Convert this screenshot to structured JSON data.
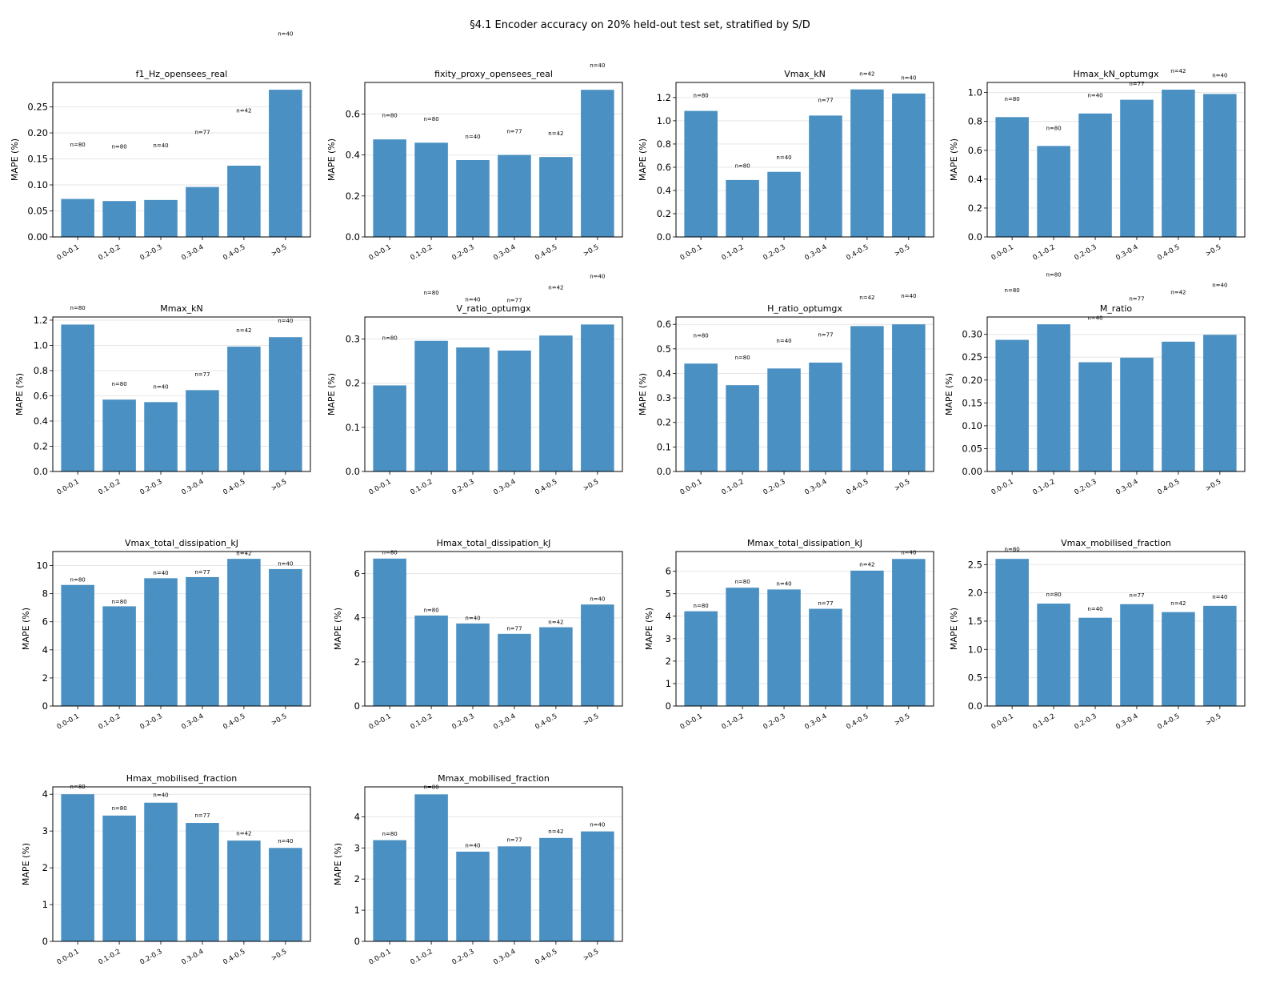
{
  "title": "§4.1 Encoder accuracy on 20% held-out test set, stratified by S/D",
  "colors": {
    "bar": "#4a90c2",
    "grid": "#e6e6e6",
    "axis": "#000000"
  },
  "chart_data": [
    {
      "type": "bar",
      "title": "f1_Hz_opensees_real",
      "ylabel": "MAPE (%)",
      "categories": [
        "0.0-0.1",
        "0.1-0.2",
        "0.2-0.3",
        "0.3-0.4",
        "0.4-0.5",
        ">0.5"
      ],
      "values": [
        0.073,
        0.069,
        0.071,
        0.096,
        0.137,
        0.283
      ],
      "n_labels": [
        "n=80",
        "n=80",
        "n=40",
        "n=77",
        "n=42",
        "n=40"
      ],
      "ylim": [
        0,
        0.297
      ],
      "yticks": [
        0,
        0.05,
        0.1,
        0.15,
        0.2,
        0.25
      ],
      "ytick_decimals": 2,
      "grid": true
    },
    {
      "type": "bar",
      "title": "fixity_proxy_opensees_real",
      "ylabel": "MAPE (%)",
      "categories": [
        "0.0-0.1",
        "0.1-0.2",
        "0.2-0.3",
        "0.3-0.4",
        "0.4-0.5",
        ">0.5"
      ],
      "values": [
        0.476,
        0.46,
        0.375,
        0.4,
        0.39,
        0.718
      ],
      "n_labels": [
        "n=80",
        "n=80",
        "n=40",
        "n=77",
        "n=42",
        "n=40"
      ],
      "ylim": [
        0,
        0.754
      ],
      "yticks": [
        0,
        0.2,
        0.4,
        0.6
      ],
      "ytick_decimals": 1,
      "grid": true
    },
    {
      "type": "bar",
      "title": "Vmax_kN",
      "ylabel": "MAPE (%)",
      "categories": [
        "0.0-0.1",
        "0.1-0.2",
        "0.2-0.3",
        "0.3-0.4",
        "0.4-0.5",
        ">0.5"
      ],
      "values": [
        1.085,
        0.49,
        0.56,
        1.045,
        1.27,
        1.235
      ],
      "n_labels": [
        "n=80",
        "n=80",
        "n=40",
        "n=77",
        "n=42",
        "n=40"
      ],
      "ylim": [
        0,
        1.33
      ],
      "yticks": [
        0,
        0.2,
        0.4,
        0.6,
        0.8,
        1.0,
        1.2
      ],
      "ytick_decimals": 1,
      "grid": true
    },
    {
      "type": "bar",
      "title": "Hmax_kN_optumgx",
      "ylabel": "MAPE (%)",
      "categories": [
        "0.0-0.1",
        "0.1-0.2",
        "0.2-0.3",
        "0.3-0.4",
        "0.4-0.5",
        ">0.5"
      ],
      "values": [
        0.83,
        0.63,
        0.855,
        0.95,
        1.02,
        0.99
      ],
      "n_labels": [
        "n=80",
        "n=80",
        "n=40",
        "n=77",
        "n=42",
        "n=40"
      ],
      "ylim": [
        0,
        1.07
      ],
      "yticks": [
        0,
        0.2,
        0.4,
        0.6,
        0.8,
        1.0
      ],
      "ytick_decimals": 1,
      "grid": true
    },
    {
      "type": "bar",
      "title": "Mmax_kN",
      "ylabel": "MAPE (%)",
      "categories": [
        "0.0-0.1",
        "0.1-0.2",
        "0.2-0.3",
        "0.3-0.4",
        "0.4-0.5",
        ">0.5"
      ],
      "values": [
        1.165,
        0.57,
        0.55,
        0.645,
        0.99,
        1.065
      ],
      "n_labels": [
        "n=80",
        "n=80",
        "n=40",
        "n=77",
        "n=42",
        "n=40"
      ],
      "ylim": [
        0,
        1.225
      ],
      "yticks": [
        0,
        0.2,
        0.4,
        0.6,
        0.8,
        1.0,
        1.2
      ],
      "ytick_decimals": 1,
      "grid": true
    },
    {
      "type": "bar",
      "title": "V_ratio_optumgx",
      "ylabel": "MAPE (%)",
      "categories": [
        "0.0-0.1",
        "0.1-0.2",
        "0.2-0.3",
        "0.3-0.4",
        "0.4-0.5",
        ">0.5"
      ],
      "values": [
        0.195,
        0.296,
        0.281,
        0.274,
        0.308,
        0.333
      ],
      "n_labels": [
        "n=80",
        "n=80",
        "n=40",
        "n=77",
        "n=42",
        "n=40"
      ],
      "ylim": [
        0,
        0.35
      ],
      "yticks": [
        0,
        0.1,
        0.2,
        0.3
      ],
      "ytick_decimals": 1,
      "grid": true
    },
    {
      "type": "bar",
      "title": "H_ratio_optumgx",
      "ylabel": "MAPE (%)",
      "categories": [
        "0.0-0.1",
        "0.1-0.2",
        "0.2-0.3",
        "0.3-0.4",
        "0.4-0.5",
        ">0.5"
      ],
      "values": [
        0.44,
        0.352,
        0.42,
        0.444,
        0.593,
        0.6
      ],
      "n_labels": [
        "n=80",
        "n=80",
        "n=40",
        "n=77",
        "n=42",
        "n=40"
      ],
      "ylim": [
        0,
        0.63
      ],
      "yticks": [
        0,
        0.1,
        0.2,
        0.3,
        0.4,
        0.5,
        0.6
      ],
      "ytick_decimals": 1,
      "grid": true
    },
    {
      "type": "bar",
      "title": "M_ratio",
      "ylabel": "MAPE (%)",
      "categories": [
        "0.0-0.1",
        "0.1-0.2",
        "0.2-0.3",
        "0.3-0.4",
        "0.4-0.5",
        ">0.5"
      ],
      "values": [
        0.288,
        0.322,
        0.239,
        0.249,
        0.284,
        0.299
      ],
      "n_labels": [
        "n=80",
        "n=80",
        "n=40",
        "n=77",
        "n=42",
        "n=40"
      ],
      "ylim": [
        0,
        0.338
      ],
      "yticks": [
        0,
        0.05,
        0.1,
        0.15,
        0.2,
        0.25,
        0.3
      ],
      "ytick_decimals": 2,
      "grid": true
    },
    {
      "type": "bar",
      "title": "Vmax_total_dissipation_kJ",
      "ylabel": "MAPE (%)",
      "categories": [
        "0.0-0.1",
        "0.1-0.2",
        "0.2-0.3",
        "0.3-0.4",
        "0.4-0.5",
        ">0.5"
      ],
      "values": [
        8.62,
        7.1,
        9.1,
        9.18,
        10.48,
        9.75
      ],
      "n_labels": [
        "n=80",
        "n=80",
        "n=40",
        "n=77",
        "n=42",
        "n=40"
      ],
      "ylim": [
        0,
        11.0
      ],
      "yticks": [
        0,
        2,
        4,
        6,
        8,
        10
      ],
      "ytick_decimals": 0,
      "grid": true
    },
    {
      "type": "bar",
      "title": "Hmax_total_dissipation_kJ",
      "ylabel": "MAPE (%)",
      "categories": [
        "0.0-0.1",
        "0.1-0.2",
        "0.2-0.3",
        "0.3-0.4",
        "0.4-0.5",
        ">0.5"
      ],
      "values": [
        6.68,
        4.1,
        3.74,
        3.27,
        3.57,
        4.6
      ],
      "n_labels": [
        "n=80",
        "n=80",
        "n=40",
        "n=77",
        "n=42",
        "n=40"
      ],
      "ylim": [
        0,
        7.0
      ],
      "yticks": [
        0,
        2,
        4,
        6
      ],
      "ytick_decimals": 0,
      "grid": true
    },
    {
      "type": "bar",
      "title": "Mmax_total_dissipation_kJ",
      "ylabel": "MAPE (%)",
      "categories": [
        "0.0-0.1",
        "0.1-0.2",
        "0.2-0.3",
        "0.3-0.4",
        "0.4-0.5",
        ">0.5"
      ],
      "values": [
        4.22,
        5.27,
        5.19,
        4.33,
        6.03,
        6.55
      ],
      "n_labels": [
        "n=80",
        "n=80",
        "n=40",
        "n=77",
        "n=42",
        "n=40"
      ],
      "ylim": [
        0,
        6.88
      ],
      "yticks": [
        0,
        1,
        2,
        3,
        4,
        5,
        6
      ],
      "ytick_decimals": 0,
      "grid": true
    },
    {
      "type": "bar",
      "title": "Vmax_mobilised_fraction",
      "ylabel": "MAPE (%)",
      "categories": [
        "0.0-0.1",
        "0.1-0.2",
        "0.2-0.3",
        "0.3-0.4",
        "0.4-0.5",
        ">0.5"
      ],
      "values": [
        2.6,
        1.81,
        1.56,
        1.8,
        1.66,
        1.77
      ],
      "n_labels": [
        "n=80",
        "n=80",
        "n=40",
        "n=77",
        "n=42",
        "n=40"
      ],
      "ylim": [
        0,
        2.73
      ],
      "yticks": [
        0,
        0.5,
        1.0,
        1.5,
        2.0,
        2.5
      ],
      "ytick_decimals": 1,
      "grid": true
    },
    {
      "type": "bar",
      "title": "Hmax_mobilised_fraction",
      "ylabel": "MAPE (%)",
      "categories": [
        "0.0-0.1",
        "0.1-0.2",
        "0.2-0.3",
        "0.3-0.4",
        "0.4-0.5",
        ">0.5"
      ],
      "values": [
        4.0,
        3.42,
        3.77,
        3.22,
        2.74,
        2.54
      ],
      "n_labels": [
        "n=80",
        "n=80",
        "n=40",
        "n=77",
        "n=42",
        "n=40"
      ],
      "ylim": [
        0,
        4.2
      ],
      "yticks": [
        0,
        1,
        2,
        3,
        4
      ],
      "ytick_decimals": 0,
      "grid": true
    },
    {
      "type": "bar",
      "title": "Mmax_mobilised_fraction",
      "ylabel": "MAPE (%)",
      "categories": [
        "0.0-0.1",
        "0.1-0.2",
        "0.2-0.3",
        "0.3-0.4",
        "0.4-0.5",
        ">0.5"
      ],
      "values": [
        3.25,
        4.72,
        2.88,
        3.05,
        3.32,
        3.53
      ],
      "n_labels": [
        "n=80",
        "n=80",
        "n=40",
        "n=77",
        "n=42",
        "n=40"
      ],
      "ylim": [
        0,
        4.96
      ],
      "yticks": [
        0,
        1,
        2,
        3,
        4
      ],
      "ytick_decimals": 0,
      "grid": true
    }
  ]
}
